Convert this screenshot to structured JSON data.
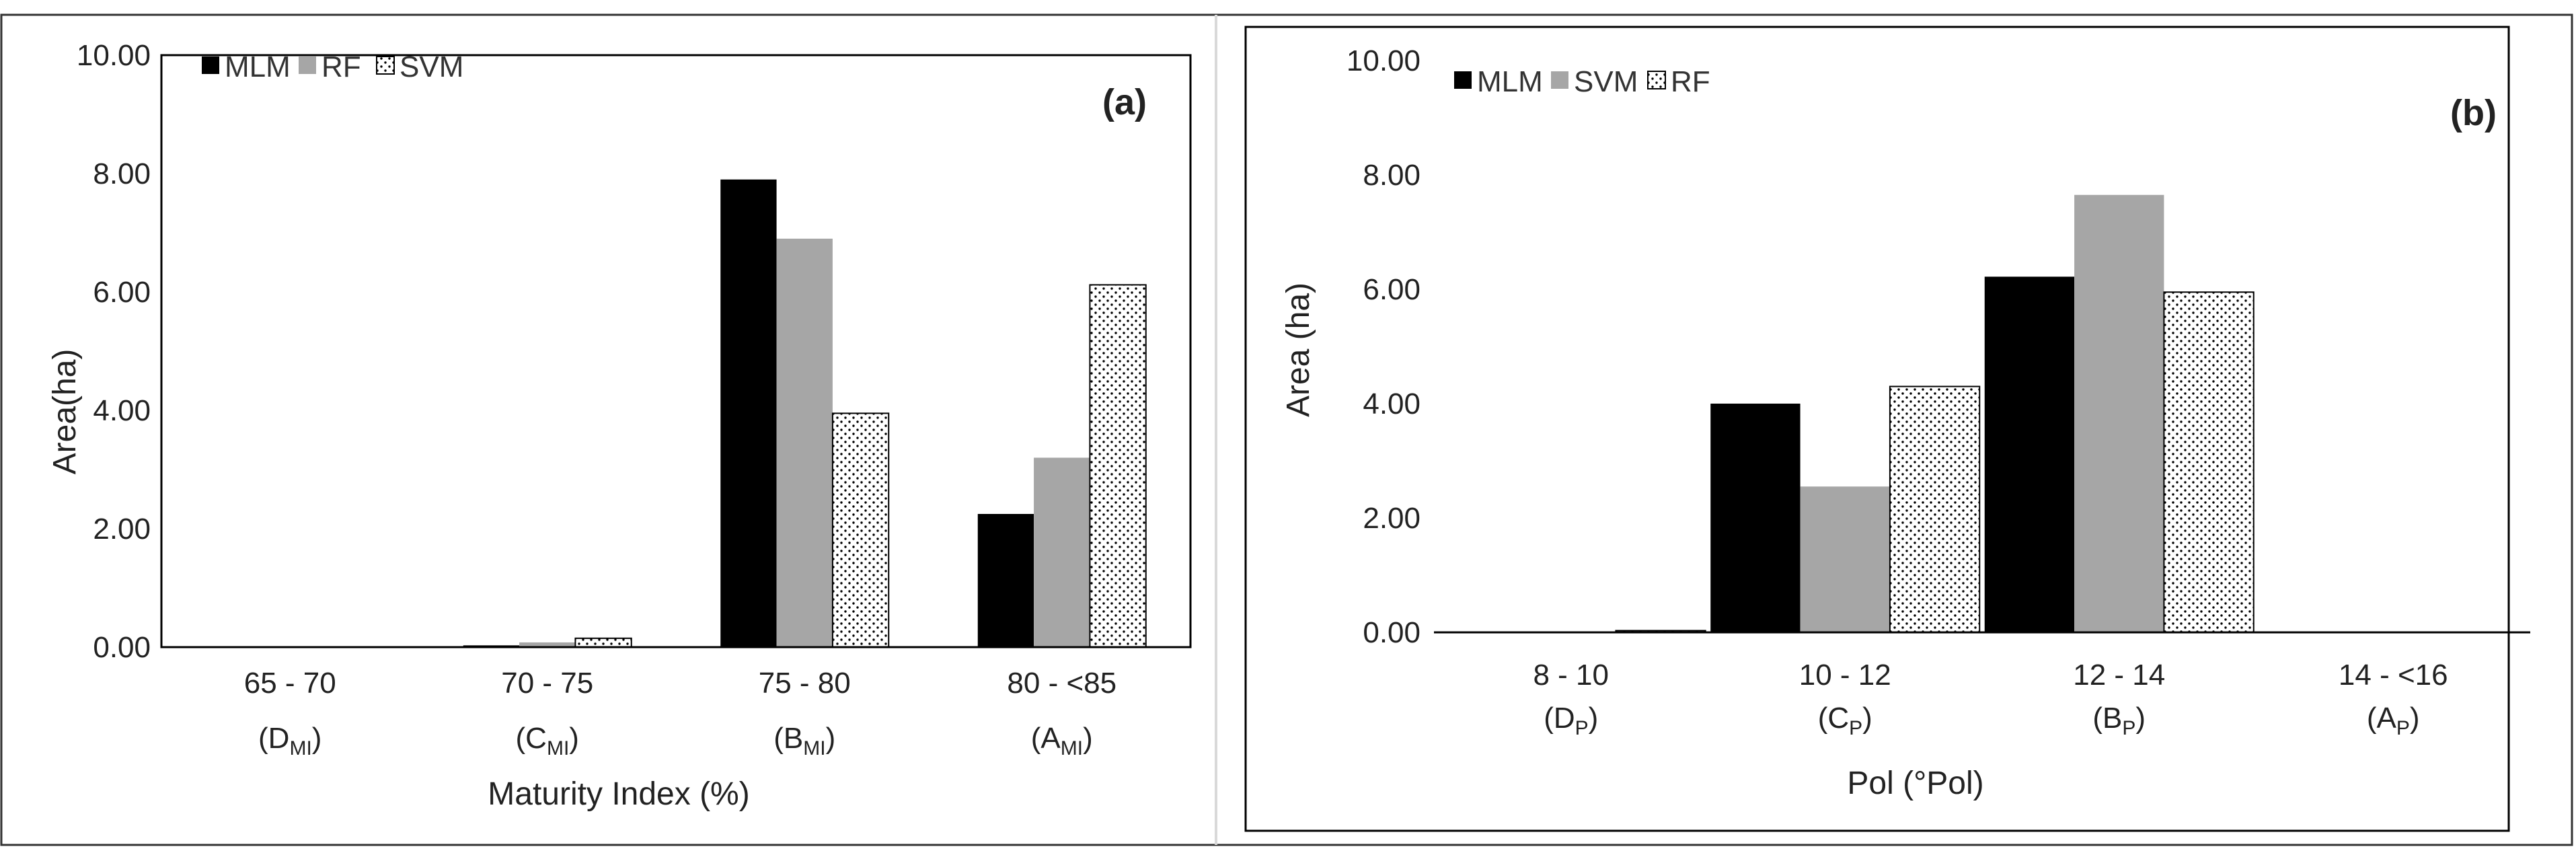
{
  "chart_data": [
    {
      "type": "bar",
      "panel_label": "(a)",
      "title": "",
      "xlabel": "Maturity Index (%)",
      "ylabel": "Area(ha)",
      "ylim": [
        0,
        10
      ],
      "yticks": [
        "0.00",
        "2.00",
        "4.00",
        "6.00",
        "8.00",
        "10.00"
      ],
      "categories": [
        {
          "range": "65 - 70",
          "class_base": "D",
          "class_sub": "MI"
        },
        {
          "range": "70 - 75",
          "class_base": "C",
          "class_sub": "MI"
        },
        {
          "range": "75 - 80",
          "class_base": "B",
          "class_sub": "MI"
        },
        {
          "range": "80 - <85",
          "class_base": "A",
          "class_sub": "MI"
        }
      ],
      "legend_position": "top-left",
      "grid": false,
      "series": [
        {
          "name": "MLM",
          "pattern": "solid-black",
          "values": [
            0.0,
            0.03,
            7.9,
            2.25
          ]
        },
        {
          "name": "RF",
          "pattern": "solid-gray",
          "values": [
            0.0,
            0.08,
            6.9,
            3.2
          ]
        },
        {
          "name": "SVM",
          "pattern": "dotted",
          "values": [
            0.0,
            0.15,
            3.95,
            6.12
          ]
        }
      ]
    },
    {
      "type": "bar",
      "panel_label": "(b)",
      "title": "",
      "xlabel": "Pol (°Pol)",
      "ylabel": "Area (ha)",
      "ylim": [
        0,
        10
      ],
      "yticks": [
        "0.00",
        "2.00",
        "4.00",
        "6.00",
        "8.00",
        "10.00"
      ],
      "categories": [
        {
          "range": "8 - 10",
          "class_base": "D",
          "class_sub": "P"
        },
        {
          "range": "10 - 12",
          "class_base": "C",
          "class_sub": "P"
        },
        {
          "range": "12 - 14",
          "class_base": "B",
          "class_sub": "P"
        },
        {
          "range": "14 - <16",
          "class_base": "A",
          "class_sub": "P"
        }
      ],
      "legend_position": "top-left",
      "grid": false,
      "series": [
        {
          "name": "MLM",
          "pattern": "solid-black",
          "values": [
            0.0,
            4.0,
            6.22,
            0.0
          ]
        },
        {
          "name": "SVM",
          "pattern": "solid-gray",
          "values": [
            0.0,
            2.55,
            7.65,
            0.0
          ]
        },
        {
          "name": "RF",
          "pattern": "dotted",
          "values": [
            0.03,
            4.3,
            5.95,
            0.0
          ]
        }
      ]
    }
  ],
  "colors": {
    "solid-black": "#000000",
    "solid-gray": "#a6a6a6",
    "dotted-bg": "#ffffff",
    "dot": "#000000",
    "axis": "#000000",
    "frame": "#333333"
  }
}
